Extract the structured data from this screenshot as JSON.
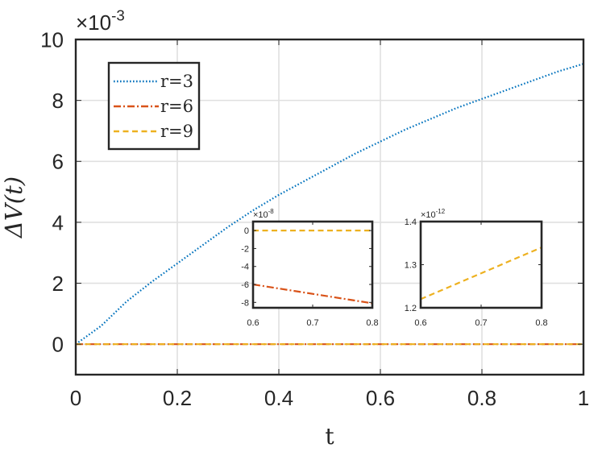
{
  "chart_data": [
    {
      "type": "line",
      "xlabel": "t",
      "ylabel": "ΔV(t)",
      "y_exponent_label": "×10",
      "y_exponent": "-3",
      "xlim": [
        0,
        1
      ],
      "ylim": [
        -1,
        10
      ],
      "x_ticks": [
        0,
        0.2,
        0.4,
        0.6,
        0.8,
        1
      ],
      "x_tick_labels": [
        "0",
        "0.2",
        "0.4",
        "0.6",
        "0.8",
        "1"
      ],
      "y_ticks": [
        0,
        2,
        4,
        6,
        8,
        10
      ],
      "y_tick_labels": [
        "0",
        "2",
        "4",
        "6",
        "8",
        "10"
      ],
      "grid": true,
      "legend_position": "top-left",
      "series": [
        {
          "name": "r=3",
          "color": "#0072BD",
          "style": "dotted",
          "x": [
            0,
            0.05,
            0.1,
            0.15,
            0.2,
            0.25,
            0.3,
            0.35,
            0.4,
            0.45,
            0.5,
            0.55,
            0.6,
            0.65,
            0.7,
            0.75,
            0.8,
            0.85,
            0.9,
            0.95,
            1.0
          ],
          "y": [
            0,
            0.6,
            1.4,
            2.05,
            2.65,
            3.25,
            3.85,
            4.4,
            4.9,
            5.35,
            5.8,
            6.25,
            6.65,
            7.05,
            7.4,
            7.75,
            8.05,
            8.35,
            8.65,
            8.95,
            9.2
          ]
        },
        {
          "name": "r=6",
          "color": "#D95319",
          "style": "dashdot",
          "x": [
            0,
            1
          ],
          "y": [
            0,
            0
          ]
        },
        {
          "name": "r=9",
          "color": "#EDB120",
          "style": "dashed",
          "x": [
            0,
            1
          ],
          "y": [
            0,
            0
          ]
        }
      ]
    },
    {
      "type": "line",
      "inset": "left",
      "y_exponent_label": "×10",
      "y_exponent": "-8",
      "xlim": [
        0.6,
        0.8
      ],
      "ylim": [
        -8.6,
        1
      ],
      "x_ticks": [
        0.6,
        0.7,
        0.8
      ],
      "x_tick_labels": [
        "0.6",
        "0.7",
        "0.8"
      ],
      "y_ticks": [
        0,
        -2,
        -4,
        -6,
        -8
      ],
      "y_tick_labels": [
        "0",
        "-2",
        "-4",
        "-6",
        "-8"
      ],
      "series": [
        {
          "name": "r=9",
          "color": "#EDB120",
          "style": "dashed",
          "x": [
            0.6,
            0.8
          ],
          "y": [
            0,
            0
          ]
        },
        {
          "name": "r=6",
          "color": "#D95319",
          "style": "dashdot",
          "x": [
            0.6,
            0.8
          ],
          "y": [
            -6.0,
            -8.1
          ]
        }
      ]
    },
    {
      "type": "line",
      "inset": "right",
      "y_exponent_label": "×10",
      "y_exponent": "-12",
      "xlim": [
        0.6,
        0.8
      ],
      "ylim": [
        1.2,
        1.4
      ],
      "x_ticks": [
        0.6,
        0.7,
        0.8
      ],
      "x_tick_labels": [
        "0.6",
        "0.7",
        "0.8"
      ],
      "y_ticks": [
        1.2,
        1.3,
        1.4
      ],
      "y_tick_labels": [
        "1.2",
        "1.3",
        "1.4"
      ],
      "series": [
        {
          "name": "r=9",
          "color": "#EDB120",
          "style": "dashed",
          "x": [
            0.6,
            0.8
          ],
          "y": [
            1.22,
            1.34
          ]
        }
      ]
    }
  ]
}
